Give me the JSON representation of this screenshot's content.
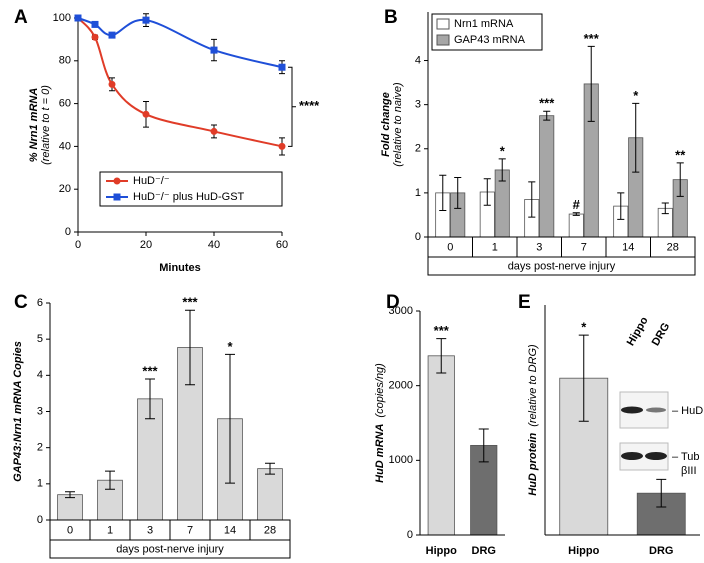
{
  "chart_data": [
    {
      "type": "scatter",
      "panel": "A",
      "xlabel": "Minutes",
      "ylabel": "% Nrn1 mRNA",
      "ylabel_sub": "(relative to t = 0)",
      "xlim": [
        0,
        60
      ],
      "ylim": [
        0,
        100
      ],
      "xticks": [
        0,
        20,
        40,
        60
      ],
      "yticks": [
        0,
        20,
        40,
        60,
        80,
        100
      ],
      "legend": "lower right",
      "annotation": "****",
      "series": [
        {
          "name": "HuD⁻/⁻",
          "color": "#e03c28",
          "marker": "circle",
          "x": [
            0,
            5,
            10,
            20,
            40,
            60
          ],
          "values": [
            100,
            91,
            69,
            55,
            47,
            40
          ],
          "errors": [
            0,
            1,
            3,
            6,
            3,
            4
          ]
        },
        {
          "name": "HuD⁻/⁻ plus HuD-GST",
          "color": "#1f4fd8",
          "marker": "square",
          "x": [
            0,
            5,
            10,
            20,
            40,
            60
          ],
          "values": [
            100,
            97,
            92,
            99,
            85,
            77
          ],
          "errors": [
            0,
            1,
            1,
            3,
            5,
            3
          ]
        }
      ]
    },
    {
      "type": "bar",
      "panel": "B",
      "categories": [
        "0",
        "1",
        "3",
        "7",
        "14",
        "28"
      ],
      "xlabel": "days post-nerve injury",
      "ylabel": "Fold change",
      "ylabel_sub": "(relative to naive)",
      "ylim": [
        0,
        5.1
      ],
      "yticks": [
        0,
        1,
        2,
        3,
        4
      ],
      "legend": "upper left",
      "series": [
        {
          "name": "Nrn1 mRNA",
          "color": "#ffffff",
          "values": [
            1.0,
            1.02,
            0.85,
            0.52,
            0.7,
            0.65
          ],
          "errors": [
            0.4,
            0.3,
            0.4,
            0.03,
            0.3,
            0.12
          ],
          "annotations": [
            null,
            null,
            null,
            "#",
            null,
            null
          ]
        },
        {
          "name": "GAP43 mRNA",
          "color": "#a6a6a6",
          "values": [
            1.0,
            1.52,
            2.75,
            3.47,
            2.25,
            1.3
          ],
          "errors": [
            0.35,
            0.25,
            0.1,
            0.85,
            0.78,
            0.38
          ],
          "annotations": [
            null,
            "*",
            "***",
            "***",
            "*",
            "**"
          ]
        }
      ]
    },
    {
      "type": "bar",
      "panel": "C",
      "categories": [
        "0",
        "1",
        "3",
        "7",
        "14",
        "28"
      ],
      "xlabel": "days post-nerve injury",
      "ylabel": "GAP43:Nrn1 mRNA Copies",
      "ylim": [
        0,
        6
      ],
      "yticks": [
        0,
        1,
        2,
        3,
        4,
        5,
        6
      ],
      "color": "#d9d9d9",
      "values": [
        0.7,
        1.1,
        3.35,
        4.77,
        2.8,
        1.42
      ],
      "errors": [
        0.08,
        0.25,
        0.55,
        1.03,
        1.78,
        0.15
      ],
      "annotations": [
        null,
        null,
        "***",
        "***",
        "*",
        null
      ]
    },
    {
      "type": "bar",
      "panel": "D",
      "categories": [
        "Hippo",
        "DRG"
      ],
      "ylabel": "HuD mRNA",
      "ylabel_sub": "(copies/ng)",
      "ylim": [
        0,
        3000
      ],
      "yticks": [
        0,
        1000,
        2000,
        3000
      ],
      "colors": [
        "#d9d9d9",
        "#6e6e6e"
      ],
      "values": [
        2400,
        1200
      ],
      "errors": [
        230,
        220
      ],
      "annotations": [
        "***",
        null
      ]
    },
    {
      "type": "bar",
      "panel": "E",
      "categories": [
        "Hippo",
        "DRG"
      ],
      "ylabel": "HuD protein",
      "ylabel_sub": "(relative to DRG)",
      "ylim": [
        0,
        5.5
      ],
      "colors": [
        "#d9d9d9",
        "#6e6e6e"
      ],
      "values": [
        3.75,
        1.0
      ],
      "errors": [
        1.03,
        0.33
      ],
      "annotations": [
        "*",
        null
      ],
      "blot": {
        "lanes": [
          "Hippo",
          "DRG"
        ],
        "bands": [
          "– HuD",
          "– Tub",
          "βIII"
        ]
      }
    }
  ]
}
